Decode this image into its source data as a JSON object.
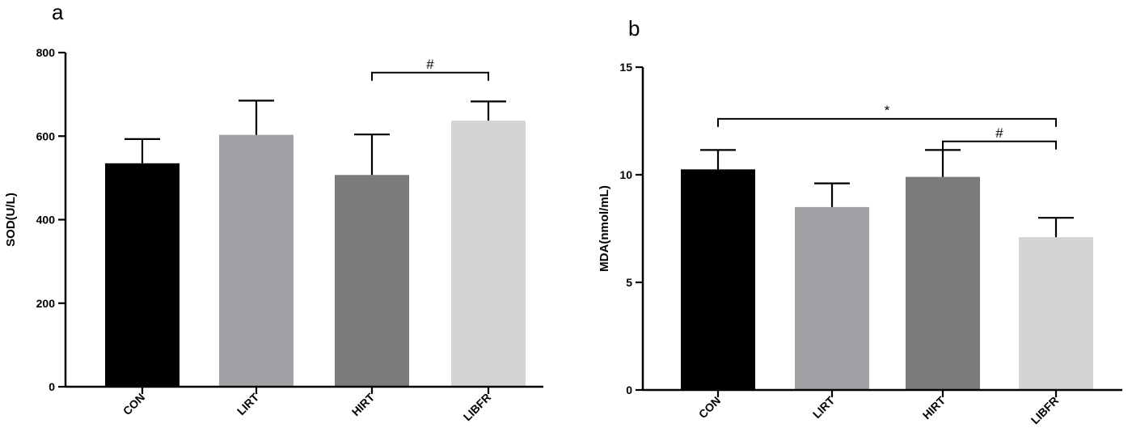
{
  "chart_data": [
    {
      "panel": "a",
      "type": "bar",
      "ylabel": "SOD(U/L)",
      "xlabel": "",
      "ylim": [
        0,
        800
      ],
      "yticks": [
        0,
        200,
        400,
        600,
        800
      ],
      "categories": [
        "CON",
        "LIRT",
        "HIRT",
        "LIBFR"
      ],
      "values": [
        535,
        603,
        507,
        637
      ],
      "errors": [
        58,
        82,
        97,
        46
      ],
      "colors": [
        "#000000",
        "#a2a1a6",
        "#7b7b7b",
        "#d4d4d4"
      ],
      "annotations": [
        {
          "from": "HIRT",
          "to": "LIBFR",
          "label": "#",
          "y": 752
        }
      ]
    },
    {
      "panel": "b",
      "type": "bar",
      "ylabel": "MDA(nmol/mL)",
      "xlabel": "",
      "ylim": [
        0,
        15
      ],
      "yticks": [
        0,
        5,
        10,
        15
      ],
      "categories": [
        "CON",
        "LIRT",
        "HIRT",
        "LIBFR"
      ],
      "values": [
        10.25,
        8.5,
        9.9,
        7.1
      ],
      "errors": [
        0.9,
        1.1,
        1.25,
        0.9
      ],
      "colors": [
        "#000000",
        "#a2a1a6",
        "#7b7b7b",
        "#d4d4d4"
      ],
      "annotations": [
        {
          "from": "CON",
          "to": "LIBFR",
          "label": "*",
          "y": 12.6
        },
        {
          "from": "HIRT",
          "to": "LIBFR",
          "label": "#",
          "y": 11.55
        }
      ]
    }
  ]
}
